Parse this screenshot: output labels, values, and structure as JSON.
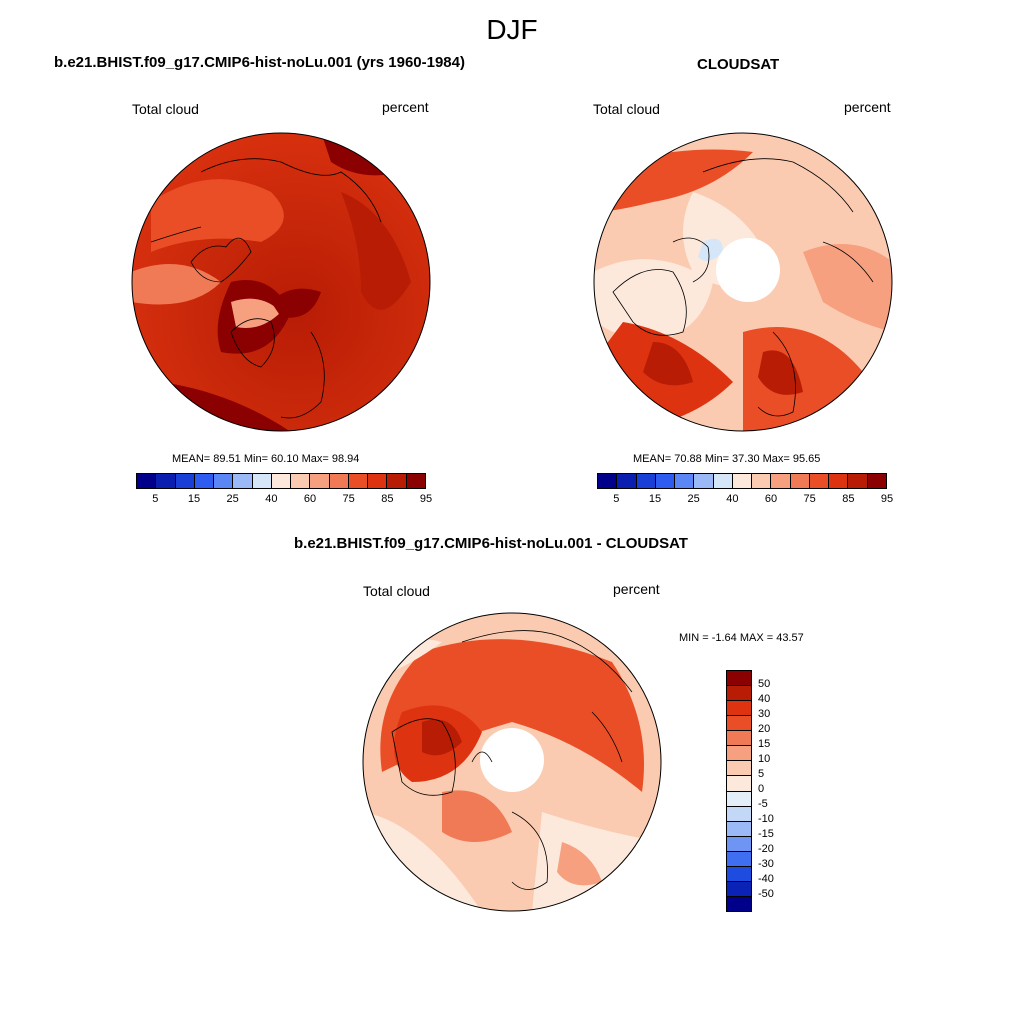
{
  "season": "DJF",
  "panels": {
    "model": {
      "title": "b.e21.BHIST.f09_g17.CMIP6-hist-noLu.001 (yrs 1960-1984)",
      "field": "Total cloud",
      "units": "percent",
      "stats": "MEAN=  89.51  Min=  60.10  Max=  98.94"
    },
    "obs": {
      "title": "CLOUDSAT",
      "field": "Total cloud",
      "units": "percent",
      "stats": "MEAN=  70.88  Min=  37.30  Max=  95.65"
    },
    "diff": {
      "title": "b.e21.BHIST.f09_g17.CMIP6-hist-noLu.001 - CLOUDSAT",
      "field": "Total cloud",
      "units": "percent",
      "stats": "MIN =  -1.64 MAX =  43.57"
    }
  },
  "colorbar_main": {
    "colors": [
      "#00008b",
      "#0a1fb0",
      "#1a3fd6",
      "#2e5cf0",
      "#5b86f5",
      "#9bb8f7",
      "#d6e6f9",
      "#fde9dc",
      "#fbcbb1",
      "#f6a07f",
      "#f07a55",
      "#ea4e27",
      "#dd3311",
      "#b81c05",
      "#8b0000"
    ],
    "labels": [
      "5",
      "15",
      "25",
      "40",
      "60",
      "75",
      "85",
      "95"
    ]
  },
  "colorbar_diff": {
    "colors": [
      "#8b0000",
      "#b81c05",
      "#dd3311",
      "#ea4e27",
      "#f07a55",
      "#f6a07f",
      "#fbcbb1",
      "#fde9dc",
      "#e3eef9",
      "#c3d8f7",
      "#9bb8f7",
      "#6e95f4",
      "#3f6ef0",
      "#1f4ce0",
      "#0a22b5",
      "#00008b"
    ],
    "labels": [
      "50",
      "40",
      "30",
      "20",
      "15",
      "10",
      "5",
      "0",
      "-5",
      "-10",
      "-15",
      "-20",
      "-30",
      "-40",
      "-50"
    ]
  }
}
